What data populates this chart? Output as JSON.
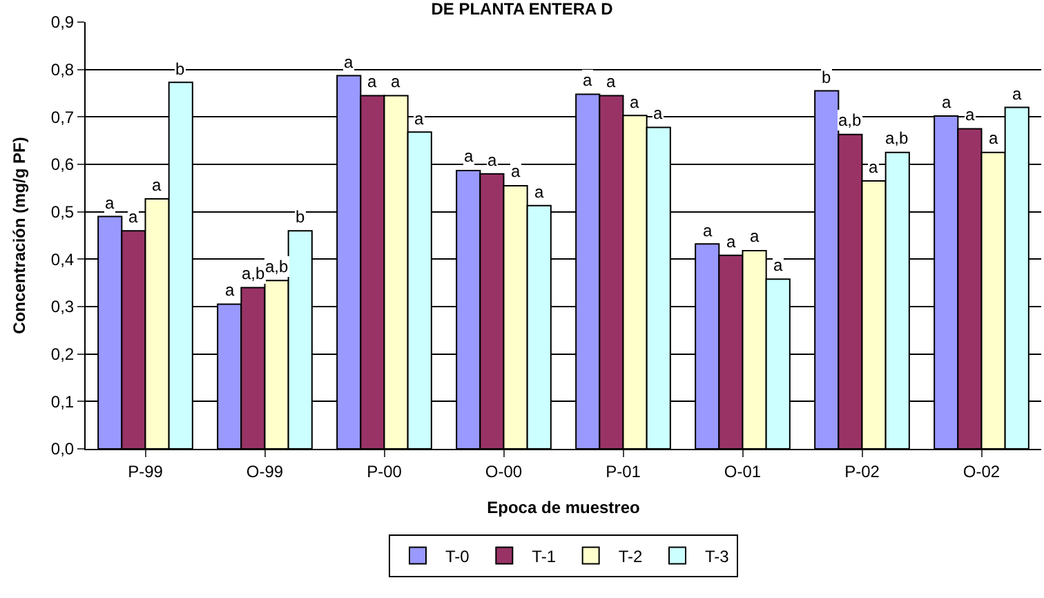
{
  "chart_data": {
    "type": "bar",
    "title": "DE PLANTA ENTERA D",
    "xlabel": "Epoca de muestreo",
    "ylabel": "Concentración (mg/g PF)",
    "categories": [
      "P-99",
      "O-99",
      "P-00",
      "O-00",
      "P-01",
      "O-01",
      "P-02",
      "O-02"
    ],
    "series": [
      {
        "name": "T-0",
        "color": "#9999ff",
        "values": [
          0.49,
          0.305,
          0.787,
          0.587,
          0.748,
          0.432,
          0.755,
          0.702
        ],
        "value_labels": [
          "a",
          "a",
          "a",
          "a",
          "a",
          "a",
          "b",
          "a"
        ]
      },
      {
        "name": "T-1",
        "color": "#993366",
        "values": [
          0.46,
          0.34,
          0.745,
          0.58,
          0.745,
          0.408,
          0.663,
          0.675
        ],
        "value_labels": [
          "a",
          "a,b",
          "a",
          "a",
          "a",
          "a",
          "a,b",
          "a"
        ]
      },
      {
        "name": "T-2",
        "color": "#ffffcc",
        "values": [
          0.527,
          0.355,
          0.745,
          0.555,
          0.703,
          0.418,
          0.565,
          0.625
        ],
        "value_labels": [
          "a",
          "a,b",
          "a",
          "a",
          "a",
          "a",
          "a",
          "a"
        ]
      },
      {
        "name": "T-3",
        "color": "#ccffff",
        "values": [
          0.773,
          0.46,
          0.668,
          0.513,
          0.678,
          0.358,
          0.625,
          0.72
        ],
        "value_labels": [
          "b",
          "b",
          "a",
          "a",
          "a",
          "a",
          "a,b",
          "a"
        ]
      }
    ],
    "ylim": [
      0,
      0.9
    ],
    "yticks": [
      {
        "value": 0,
        "label": "0,0"
      },
      {
        "value": 0.1,
        "label": "0,1"
      },
      {
        "value": 0.2,
        "label": "0,2"
      },
      {
        "value": 0.3,
        "label": "0,3"
      },
      {
        "value": 0.4,
        "label": "0,4"
      },
      {
        "value": 0.5,
        "label": "0,5"
      },
      {
        "value": 0.6,
        "label": "0,6"
      },
      {
        "value": 0.7,
        "label": "0,7"
      },
      {
        "value": 0.8,
        "label": "0,8"
      },
      {
        "value": 0.9,
        "label": "0,9"
      }
    ],
    "grid": "y",
    "legend": "bottom"
  }
}
